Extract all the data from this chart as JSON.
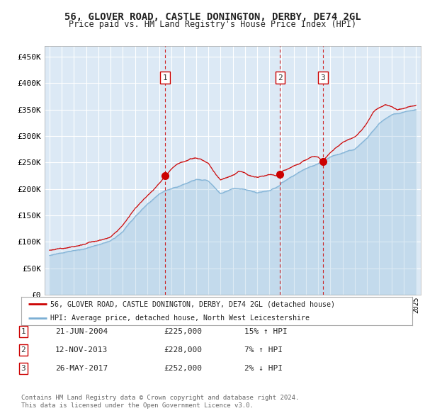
{
  "title": "56, GLOVER ROAD, CASTLE DONINGTON, DERBY, DE74 2GL",
  "subtitle": "Price paid vs. HM Land Registry's House Price Index (HPI)",
  "background_color": "#dce9f5",
  "red_line_color": "#cc0000",
  "blue_line_color": "#7bafd4",
  "grid_color": "#ffffff",
  "vline_color": "#cc0000",
  "ylim": [
    0,
    470000
  ],
  "yticks": [
    0,
    50000,
    100000,
    150000,
    200000,
    250000,
    300000,
    350000,
    400000,
    450000
  ],
  "ytick_labels": [
    "£0",
    "£50K",
    "£100K",
    "£150K",
    "£200K",
    "£250K",
    "£300K",
    "£350K",
    "£400K",
    "£450K"
  ],
  "xlim_start": 1994.6,
  "xlim_end": 2025.4,
  "sale_dates": [
    2004.47,
    2013.87,
    2017.4
  ],
  "sale_prices": [
    225000,
    228000,
    252000
  ],
  "sale_labels": [
    "1",
    "2",
    "3"
  ],
  "sale_info": [
    {
      "num": "1",
      "date": "21-JUN-2004",
      "price": "£225,000",
      "hpi": "15% ↑ HPI"
    },
    {
      "num": "2",
      "date": "12-NOV-2013",
      "price": "£228,000",
      "hpi": "7% ↑ HPI"
    },
    {
      "num": "3",
      "date": "26-MAY-2017",
      "price": "£252,000",
      "hpi": "2% ↓ HPI"
    }
  ],
  "legend_line1": "56, GLOVER ROAD, CASTLE DONINGTON, DERBY, DE74 2GL (detached house)",
  "legend_line2": "HPI: Average price, detached house, North West Leicestershire",
  "footer1": "Contains HM Land Registry data © Crown copyright and database right 2024.",
  "footer2": "This data is licensed under the Open Government Licence v3.0.",
  "hpi_keypoints": [
    [
      1995.0,
      74000
    ],
    [
      1996.0,
      78000
    ],
    [
      1997.0,
      82000
    ],
    [
      1998.0,
      86000
    ],
    [
      1999.0,
      92000
    ],
    [
      2000.0,
      100000
    ],
    [
      2001.0,
      118000
    ],
    [
      2002.0,
      145000
    ],
    [
      2003.0,
      170000
    ],
    [
      2004.0,
      192000
    ],
    [
      2004.5,
      198000
    ],
    [
      2005.0,
      202000
    ],
    [
      2006.0,
      210000
    ],
    [
      2007.0,
      218000
    ],
    [
      2008.0,
      215000
    ],
    [
      2009.0,
      192000
    ],
    [
      2010.0,
      200000
    ],
    [
      2011.0,
      198000
    ],
    [
      2012.0,
      193000
    ],
    [
      2013.0,
      198000
    ],
    [
      2013.87,
      210000
    ],
    [
      2014.0,
      215000
    ],
    [
      2015.0,
      228000
    ],
    [
      2016.0,
      242000
    ],
    [
      2017.0,
      252000
    ],
    [
      2017.4,
      256000
    ],
    [
      2018.0,
      264000
    ],
    [
      2019.0,
      272000
    ],
    [
      2020.0,
      278000
    ],
    [
      2021.0,
      300000
    ],
    [
      2022.0,
      330000
    ],
    [
      2023.0,
      345000
    ],
    [
      2024.0,
      350000
    ],
    [
      2025.0,
      355000
    ]
  ],
  "red_keypoints": [
    [
      1995.0,
      84000
    ],
    [
      1996.0,
      88000
    ],
    [
      1997.0,
      90000
    ],
    [
      1998.0,
      96000
    ],
    [
      1999.0,
      100000
    ],
    [
      2000.0,
      108000
    ],
    [
      2001.0,
      130000
    ],
    [
      2002.0,
      162000
    ],
    [
      2003.0,
      188000
    ],
    [
      2004.0,
      212000
    ],
    [
      2004.47,
      225000
    ],
    [
      2005.0,
      238000
    ],
    [
      2005.5,
      248000
    ],
    [
      2006.0,
      252000
    ],
    [
      2006.5,
      258000
    ],
    [
      2007.0,
      258000
    ],
    [
      2007.5,
      255000
    ],
    [
      2008.0,
      248000
    ],
    [
      2008.5,
      232000
    ],
    [
      2009.0,
      218000
    ],
    [
      2009.5,
      222000
    ],
    [
      2010.0,
      228000
    ],
    [
      2010.5,
      235000
    ],
    [
      2011.0,
      230000
    ],
    [
      2011.5,
      225000
    ],
    [
      2012.0,
      222000
    ],
    [
      2012.5,
      225000
    ],
    [
      2013.0,
      228000
    ],
    [
      2013.5,
      225000
    ],
    [
      2013.87,
      228000
    ],
    [
      2014.0,
      232000
    ],
    [
      2014.5,
      238000
    ],
    [
      2015.0,
      245000
    ],
    [
      2015.5,
      250000
    ],
    [
      2016.0,
      255000
    ],
    [
      2016.5,
      260000
    ],
    [
      2017.0,
      260000
    ],
    [
      2017.4,
      252000
    ],
    [
      2018.0,
      268000
    ],
    [
      2018.5,
      278000
    ],
    [
      2019.0,
      285000
    ],
    [
      2019.5,
      290000
    ],
    [
      2020.0,
      295000
    ],
    [
      2020.5,
      305000
    ],
    [
      2021.0,
      320000
    ],
    [
      2021.5,
      338000
    ],
    [
      2022.0,
      348000
    ],
    [
      2022.5,
      355000
    ],
    [
      2023.0,
      350000
    ],
    [
      2023.5,
      345000
    ],
    [
      2024.0,
      348000
    ],
    [
      2024.5,
      352000
    ],
    [
      2025.0,
      355000
    ]
  ]
}
